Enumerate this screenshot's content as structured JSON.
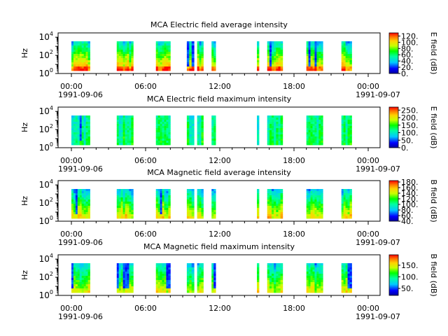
{
  "figure": {
    "x_ticks": [
      "00:00",
      "06:00",
      "12:00",
      "18:00",
      "00:00"
    ],
    "x_start_date": "1991-09-06",
    "x_end_date": "1991-09-07",
    "y_label": "Hz",
    "y_tick_exponents": [
      "0",
      "2",
      "4"
    ]
  },
  "chart_data": [
    {
      "type": "heatmap",
      "title": "MCA  Electric field average intensity",
      "ylabel": "Hz",
      "yscale": "log",
      "ylim": [
        1,
        30000
      ],
      "colorbar_label": "E field (dB)",
      "colorbar_range": [
        0,
        130
      ],
      "colorbar_ticks": [
        "0.",
        "20.",
        "40.",
        "60.",
        "80.",
        "100.",
        "120."
      ],
      "colorbar_tick_values": [
        0,
        20,
        40,
        60,
        80,
        100,
        120
      ]
    },
    {
      "type": "heatmap",
      "title": "MCA  Electric field maximum intensity",
      "ylabel": "Hz",
      "yscale": "log",
      "ylim": [
        1,
        30000
      ],
      "colorbar_label": "E field (dB)",
      "colorbar_range": [
        0,
        270
      ],
      "colorbar_ticks": [
        "0.",
        "50.",
        "100.",
        "150.",
        "200.",
        "250."
      ],
      "colorbar_tick_values": [
        0,
        50,
        100,
        150,
        200,
        250
      ]
    },
    {
      "type": "heatmap",
      "title": "MCA  Magnetic field average intensity",
      "ylabel": "Hz",
      "yscale": "log",
      "ylim": [
        1,
        30000
      ],
      "colorbar_label": "B field (dB)",
      "colorbar_range": [
        40,
        185
      ],
      "colorbar_ticks": [
        "40.",
        "60.",
        "80.",
        "100.",
        "120.",
        "140.",
        "160.",
        "180."
      ],
      "colorbar_tick_values": [
        40,
        60,
        80,
        100,
        120,
        140,
        160,
        180
      ]
    },
    {
      "type": "heatmap",
      "title": "MCA  Magnetic field maximum intensity",
      "ylabel": "Hz",
      "yscale": "log",
      "ylim": [
        1,
        30000
      ],
      "colorbar_label": "B field (dB)",
      "colorbar_range": [
        20,
        195
      ],
      "colorbar_ticks": [
        "50.",
        "100.",
        "150."
      ],
      "colorbar_tick_values": [
        50,
        100,
        150
      ]
    }
  ],
  "data_intervals_utc": [
    [
      "00:00",
      "01:30"
    ],
    [
      "03:40",
      "05:00"
    ],
    [
      "06:50",
      "08:00"
    ],
    [
      "09:20",
      "09:55"
    ],
    [
      "10:10",
      "10:40"
    ],
    [
      "11:20",
      "11:40"
    ],
    [
      "15:00",
      "15:10"
    ],
    [
      "15:50",
      "17:05"
    ],
    [
      "19:00",
      "20:20"
    ],
    [
      "21:50",
      "22:40"
    ]
  ]
}
